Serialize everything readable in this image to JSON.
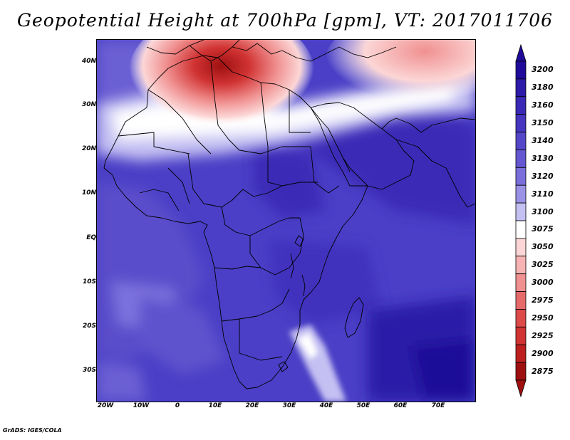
{
  "title": "Geopotential Height at 700hPa [gpm], VT: 2017011706",
  "credit": "GrADS: IGES/COLA",
  "map": {
    "lat_labels": [
      "40N",
      "30N",
      "20N",
      "10N",
      "EQ",
      "10S",
      "20S",
      "30S"
    ],
    "lon_labels": [
      "20W",
      "10W",
      "0",
      "10E",
      "20E",
      "30E",
      "40E",
      "50E",
      "60E",
      "70E"
    ],
    "region": "Africa, Arabian Peninsula and Mediterranean"
  },
  "colorbar": {
    "levels": [
      "3200",
      "3180",
      "3160",
      "3150",
      "3140",
      "3130",
      "3120",
      "3110",
      "3100",
      "3075",
      "3050",
      "3025",
      "3000",
      "2975",
      "2950",
      "2925",
      "2900",
      "2875"
    ],
    "colors": [
      "#1f0a99",
      "#2d1aa8",
      "#3a29b6",
      "#4635c0",
      "#5446c8",
      "#6457d1",
      "#7a6edb",
      "#9a92e6",
      "#c4c0f2",
      "#ffffff",
      "#fcd6d6",
      "#f7b3b3",
      "#f09090",
      "#e66a6a",
      "#dd4a4a",
      "#d13333",
      "#bd1f1f",
      "#9e1010"
    ],
    "top_arrow_color": "#1f0a99",
    "bottom_arrow_color": "#9e1010"
  }
}
